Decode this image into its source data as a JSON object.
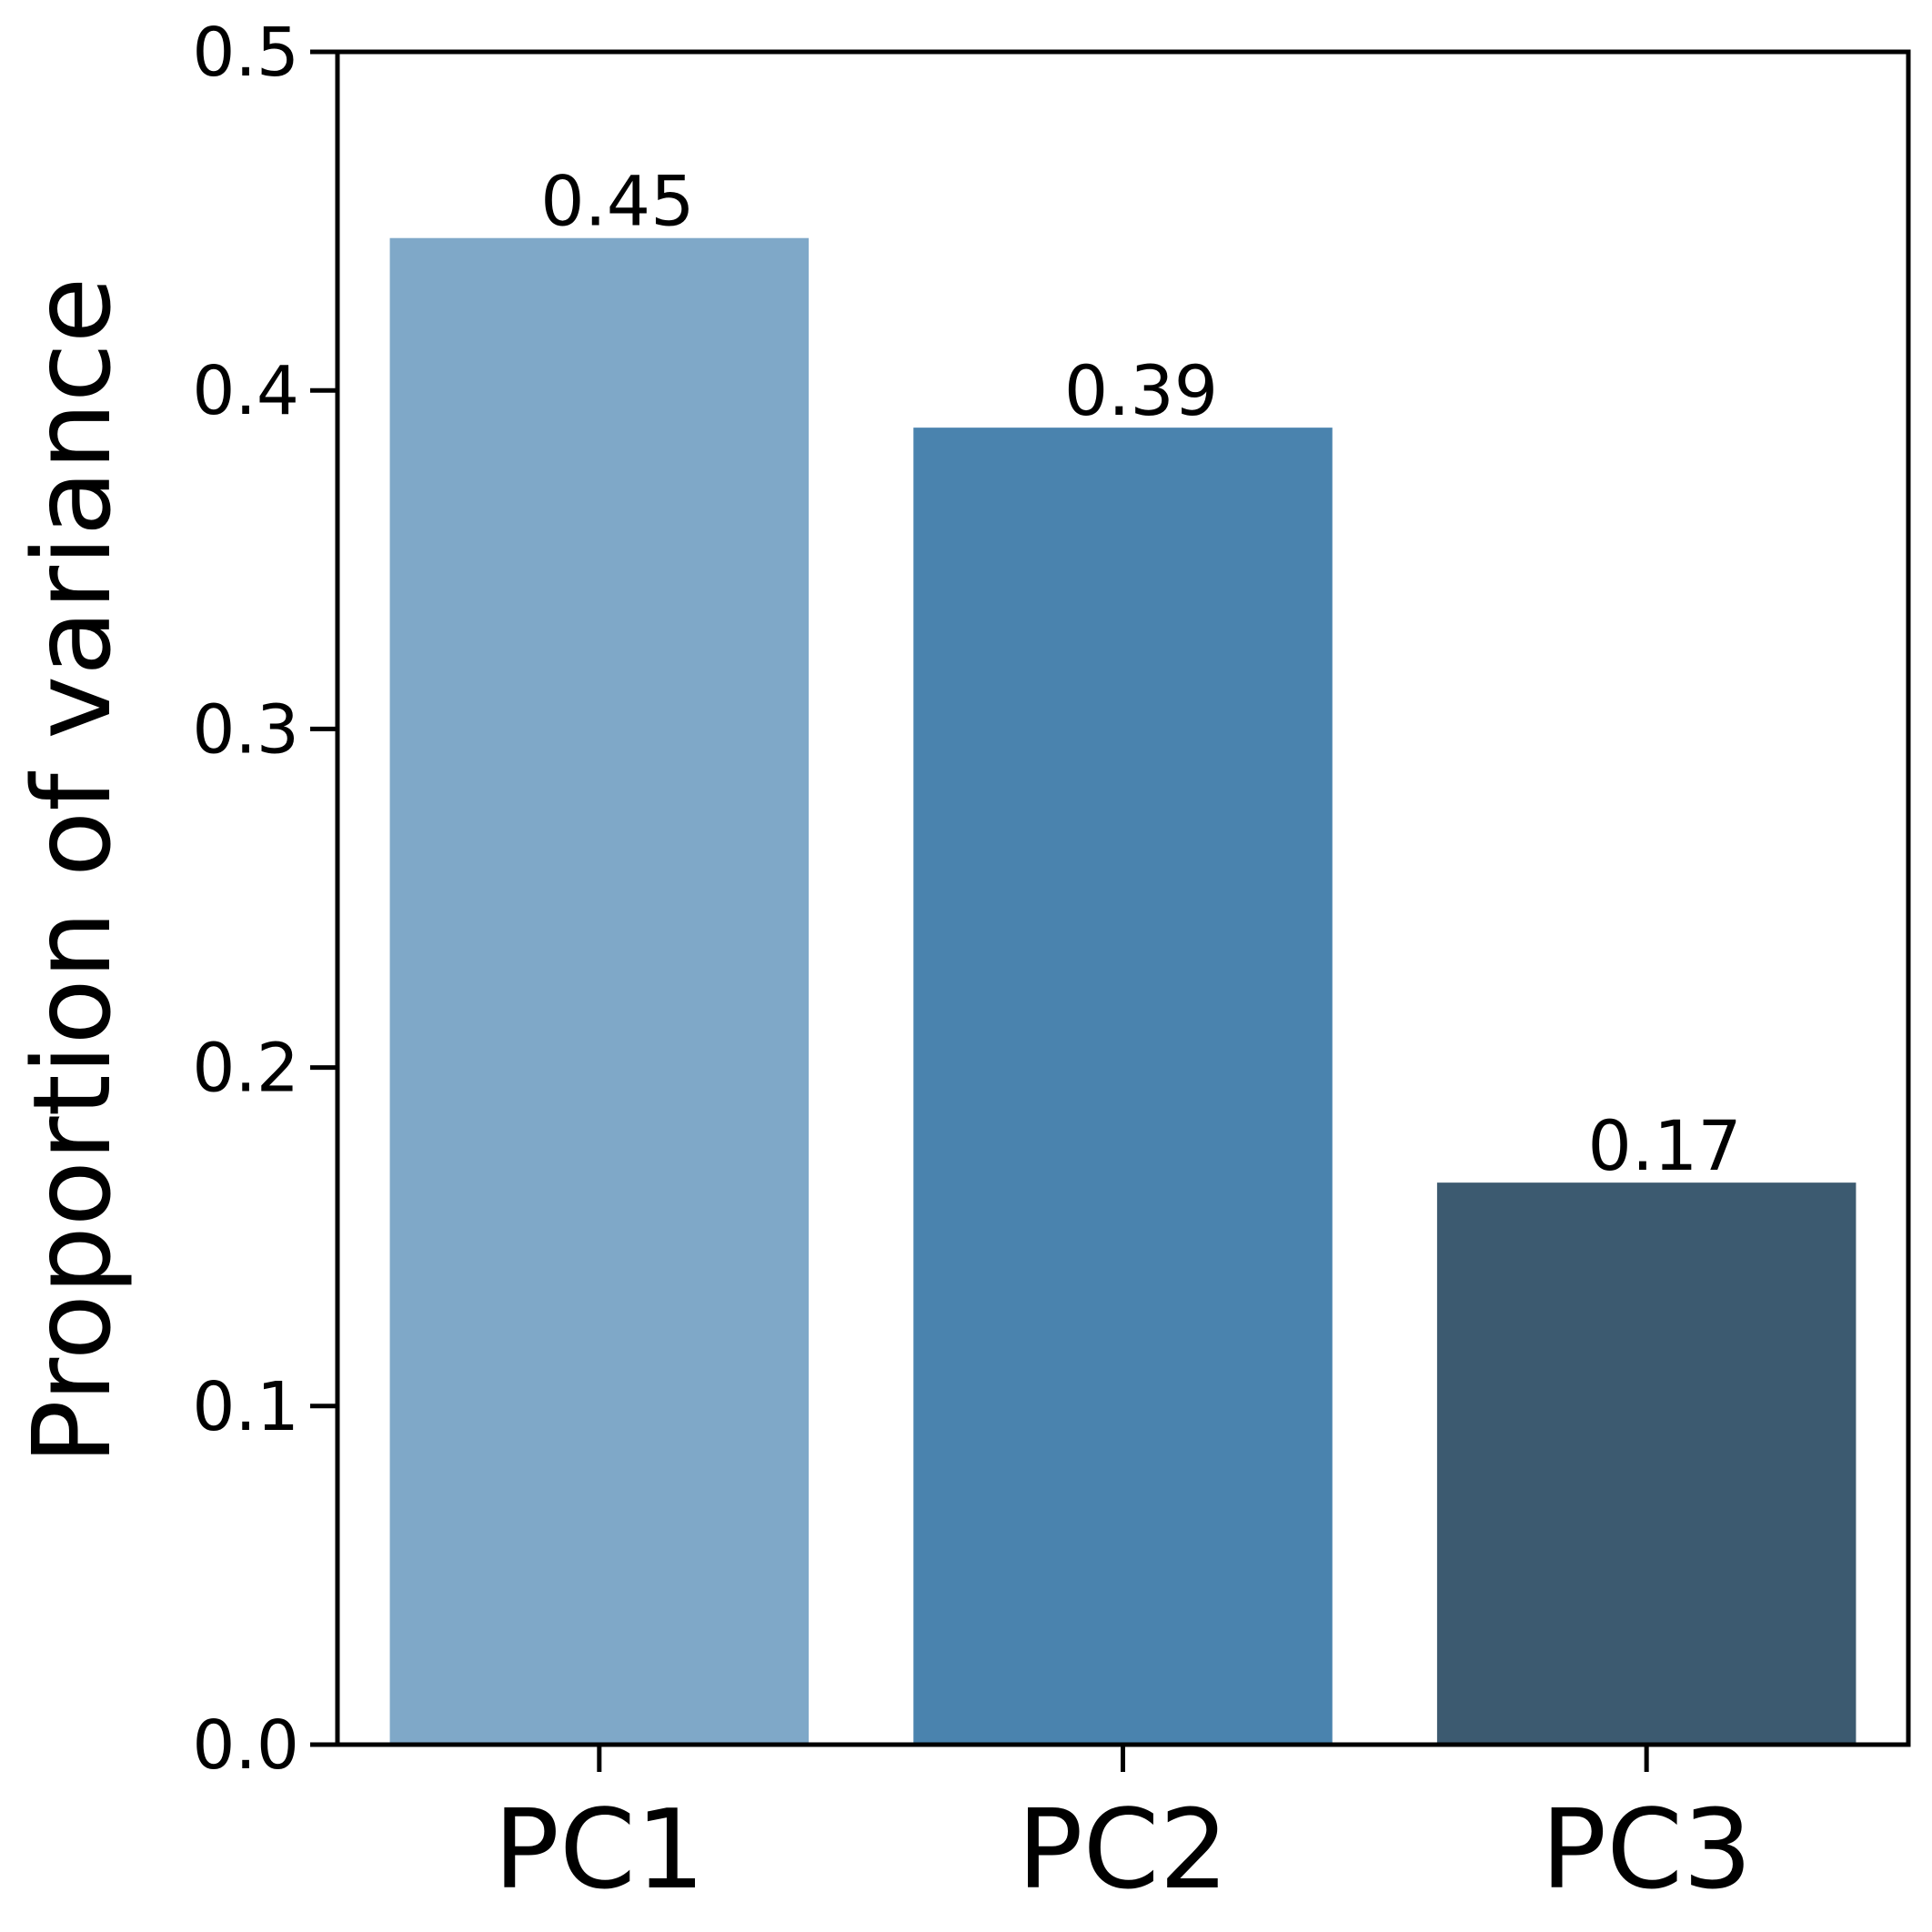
{
  "chart_data": {
    "type": "bar",
    "title": "",
    "xlabel": "",
    "ylabel": "Proportion of variance",
    "categories": [
      "PC1",
      "PC2",
      "PC3"
    ],
    "values": [
      0.445,
      0.389,
      0.166
    ],
    "data_labels": [
      "0.45",
      "0.39",
      "0.17"
    ],
    "colors": [
      "#7fa8c8",
      "#4a83ae",
      "#3c5a70"
    ],
    "ylim": [
      0,
      0.5
    ],
    "yticks": [
      0.0,
      0.1,
      0.2,
      0.3,
      0.4,
      0.5
    ],
    "ytick_labels": [
      "0.0",
      "0.1",
      "0.2",
      "0.3",
      "0.4",
      "0.5"
    ],
    "grid": false,
    "legend": "none"
  }
}
